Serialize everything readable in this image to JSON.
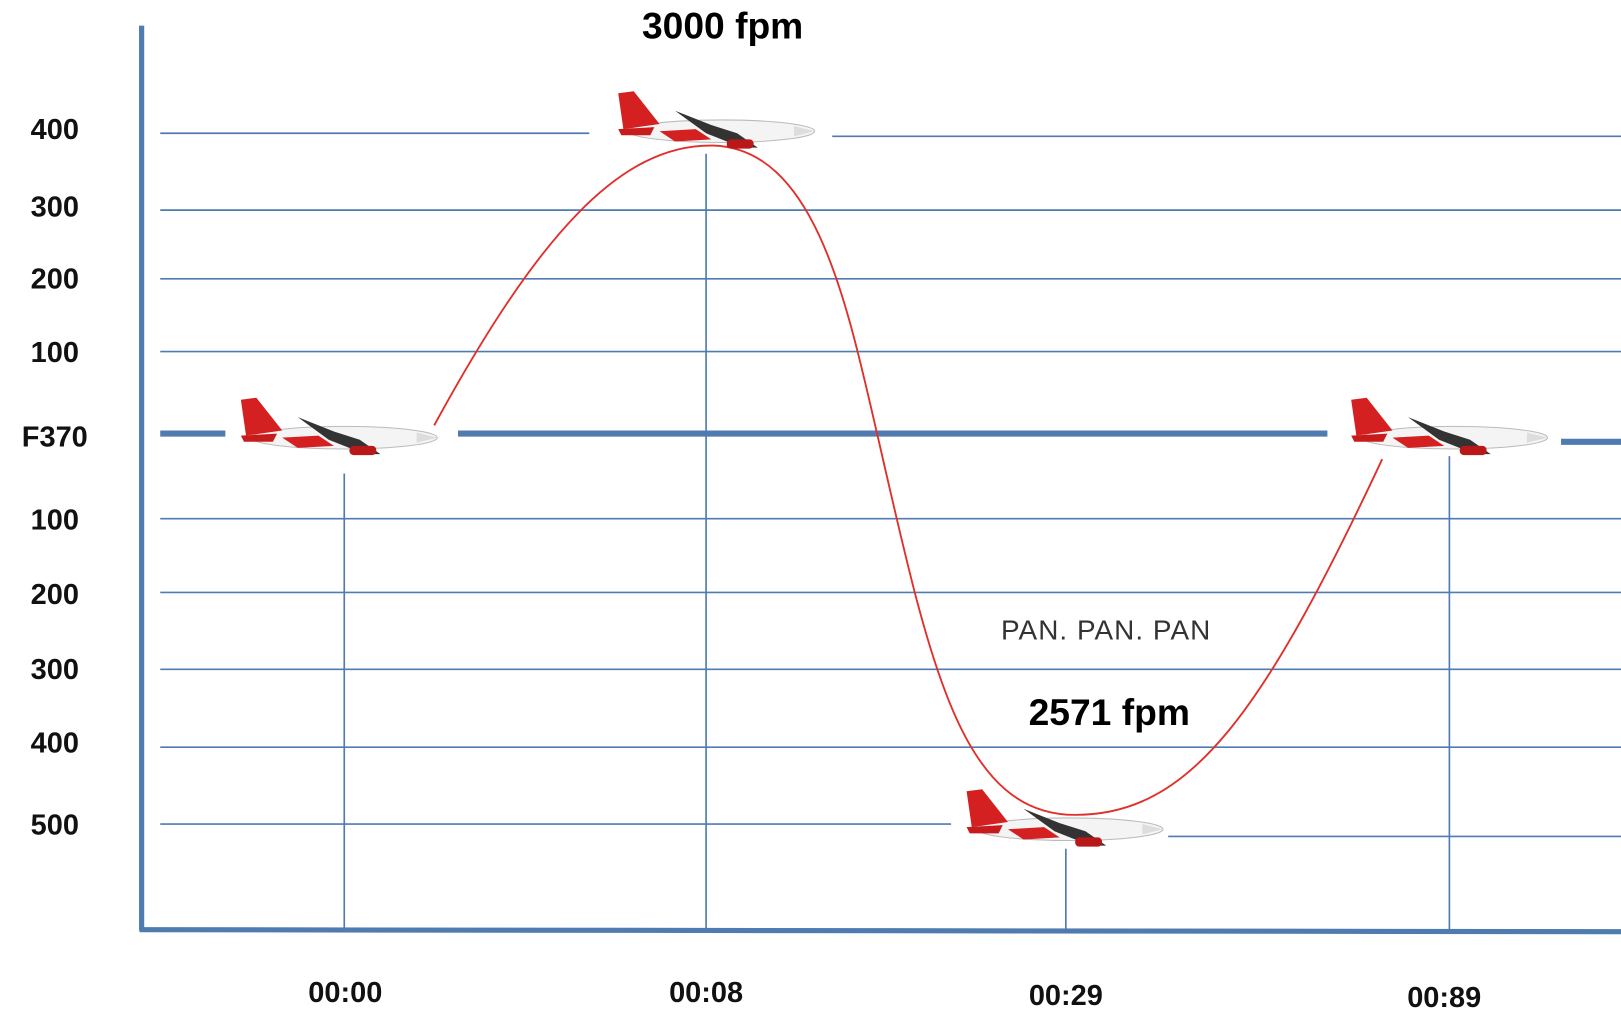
{
  "y_axis": {
    "labels": [
      "400",
      "300",
      "200",
      "100",
      "F370",
      "100",
      "200",
      "300",
      "400",
      "500"
    ]
  },
  "x_axis": {
    "labels": [
      "00:00",
      "00:08",
      "00:29",
      "00:89"
    ]
  },
  "annotations": {
    "climb_rate": "3000 fpm",
    "descent_rate": "2571 fpm",
    "call": "PAN. PAN. PAN"
  }
}
